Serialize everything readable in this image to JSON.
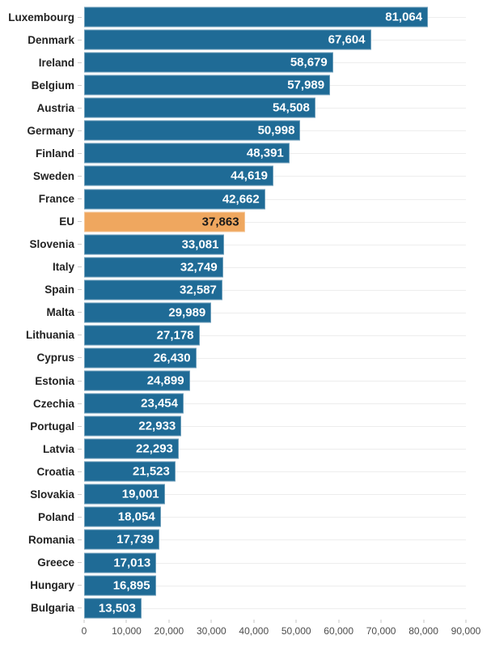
{
  "chart_data": {
    "type": "bar",
    "orientation": "horizontal",
    "title": "",
    "categories": [
      "Luxembourg",
      "Denmark",
      "Ireland",
      "Belgium",
      "Austria",
      "Germany",
      "Finland",
      "Sweden",
      "France",
      "EU",
      "Slovenia",
      "Italy",
      "Spain",
      "Malta",
      "Lithuania",
      "Cyprus",
      "Estonia",
      "Czechia",
      "Portugal",
      "Latvia",
      "Croatia",
      "Slovakia",
      "Poland",
      "Romania",
      "Greece",
      "Hungary",
      "Bulgaria"
    ],
    "values": [
      81064,
      67604,
      58679,
      57989,
      54508,
      50998,
      48391,
      44619,
      42662,
      37863,
      33081,
      32749,
      32587,
      29989,
      27178,
      26430,
      24899,
      23454,
      22933,
      22293,
      21523,
      19001,
      18054,
      17739,
      17013,
      16895,
      13503
    ],
    "value_labels": [
      "81,064",
      "67,604",
      "58,679",
      "57,989",
      "54,508",
      "50,998",
      "48,391",
      "44,619",
      "42,662",
      "37,863",
      "33,081",
      "32,749",
      "32,587",
      "29,989",
      "27,178",
      "26,430",
      "24,899",
      "23,454",
      "22,933",
      "22,293",
      "21,523",
      "19,001",
      "18,054",
      "17,739",
      "17,013",
      "16,895",
      "13,503"
    ],
    "highlight_category": "EU",
    "xlim": [
      0,
      90000
    ],
    "x_tick_labels": [
      "0",
      "10,000",
      "20,000",
      "30,000",
      "40,000",
      "50,000",
      "60,000",
      "70,000",
      "80,000",
      "90,000"
    ],
    "grid": "horizontal-row-gridlines",
    "legend_position": "none",
    "colors": {
      "bar": "#1f6b96",
      "highlight_bar": "#efa75f",
      "bar_value_text": "#ffffff",
      "highlight_value_text": "#1a1a1a",
      "category_text": "#222222",
      "axis_text": "#4d4d4d",
      "gridline": "#ededed",
      "tick": "#c4c4c4"
    }
  }
}
